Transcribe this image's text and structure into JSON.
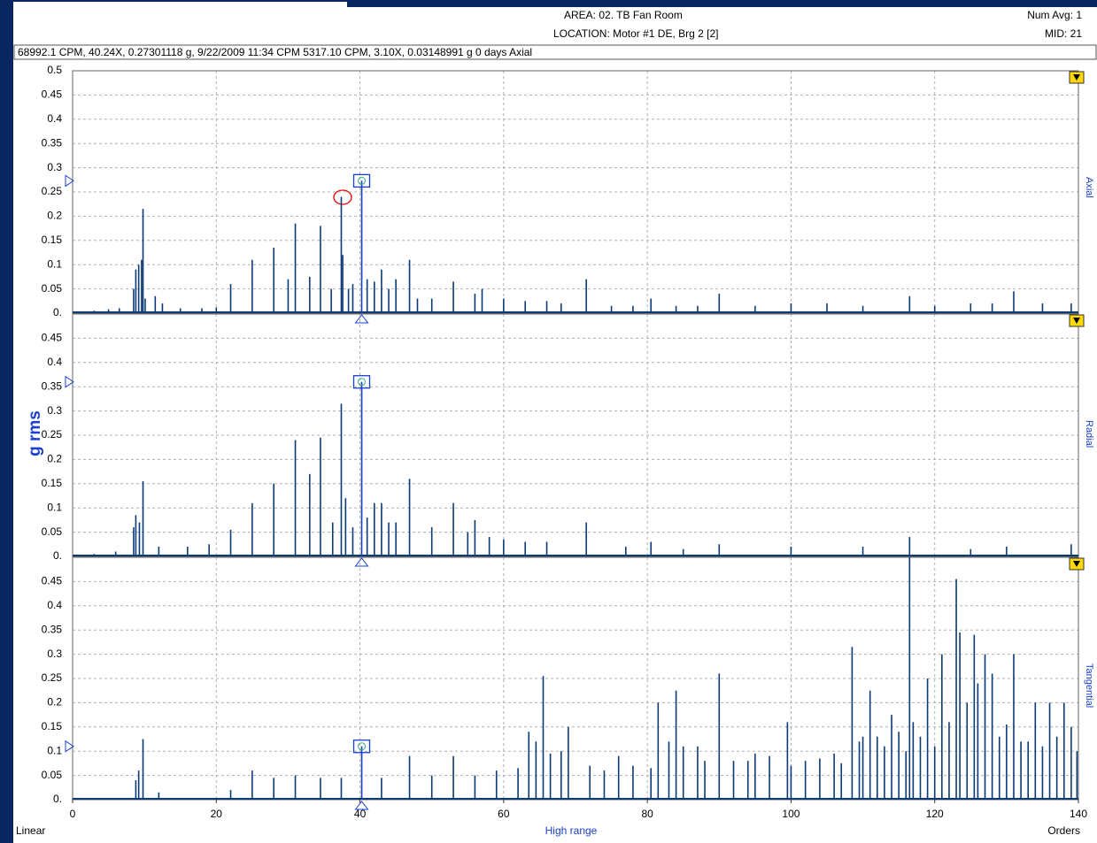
{
  "header": {
    "area": "AREA: 02. TB Fan Room",
    "location": "LOCATION: Motor #1 DE, Brg 2 [2]",
    "num_avg": "Num Avg: 1",
    "mid": "MID: 21",
    "info": "68992.1 CPM, 40.24X, 0.27301118 g, 9/22/2009 11:34 CPM 5317.10 CPM, 3.10X, 0.03148991 g  0 days  Axial"
  },
  "x_axis": {
    "xlim": [
      0,
      140
    ],
    "xticks": [
      0,
      20,
      40,
      60,
      80,
      100,
      120,
      140
    ],
    "label": "High range",
    "scale": "Linear",
    "units": "Orders"
  },
  "y_label": "g rms",
  "chart_data": [
    {
      "type": "stem",
      "side_label": "Axial",
      "color": "#0b3a75",
      "ylim": [
        0,
        0.5
      ],
      "yticks": [
        {
          "value": 0,
          "label": "0."
        },
        0.05,
        0.1,
        0.15,
        0.2,
        0.25,
        0.3,
        0.35,
        0.4,
        0.45,
        0.5
      ],
      "cursor": {
        "x": 40.24,
        "y": 0.273
      },
      "x": [
        3,
        5,
        6.5,
        8.5,
        8.8,
        9.2,
        9.6,
        9.8,
        10.1,
        11.5,
        12.5,
        15,
        18,
        20,
        22,
        25,
        28,
        30,
        31,
        33,
        34.5,
        36,
        37.4,
        37.6,
        38.4,
        39,
        40.24,
        41,
        42,
        43,
        44,
        45,
        46.9,
        48,
        50,
        53,
        56,
        57,
        60,
        63,
        66,
        68,
        71.5,
        75,
        78,
        80.5,
        84,
        87,
        90,
        95,
        100,
        105,
        110,
        116.5,
        120,
        125,
        128,
        131,
        135,
        139
      ],
      "values": [
        0.005,
        0.008,
        0.01,
        0.05,
        0.09,
        0.1,
        0.11,
        0.215,
        0.03,
        0.035,
        0.02,
        0.01,
        0.01,
        0.012,
        0.06,
        0.11,
        0.135,
        0.07,
        0.185,
        0.075,
        0.18,
        0.05,
        0.24,
        0.12,
        0.05,
        0.06,
        0.273,
        0.07,
        0.065,
        0.09,
        0.05,
        0.07,
        0.11,
        0.03,
        0.03,
        0.065,
        0.04,
        0.05,
        0.03,
        0.025,
        0.025,
        0.02,
        0.07,
        0.015,
        0.015,
        0.03,
        0.015,
        0.015,
        0.04,
        0.015,
        0.02,
        0.02,
        0.015,
        0.035,
        0.015,
        0.02,
        0.02,
        0.045,
        0.02,
        0.02
      ]
    },
    {
      "type": "stem",
      "side_label": "Radial",
      "color": "#0b3a75",
      "ylim": [
        0,
        0.5
      ],
      "yticks": [
        {
          "value": 0,
          "label": "0."
        },
        0.05,
        0.1,
        0.15,
        0.2,
        0.25,
        0.3,
        0.35,
        0.4,
        0.45
      ],
      "cursor": {
        "x": 40.24,
        "y": 0.36
      },
      "x": [
        3,
        6,
        8.5,
        8.8,
        9.3,
        9.8,
        12,
        16,
        19,
        22,
        25,
        28,
        31,
        33,
        34.5,
        36.2,
        37.4,
        38,
        39,
        40.24,
        41,
        42,
        43,
        44,
        45,
        46.9,
        50,
        53,
        55,
        56,
        58,
        60,
        63,
        66,
        71.5,
        77,
        80.5,
        85,
        90,
        100,
        110,
        116.5,
        125,
        130,
        139
      ],
      "values": [
        0.005,
        0.01,
        0.06,
        0.085,
        0.07,
        0.155,
        0.02,
        0.02,
        0.025,
        0.055,
        0.11,
        0.15,
        0.24,
        0.17,
        0.245,
        0.07,
        0.315,
        0.12,
        0.06,
        0.36,
        0.08,
        0.11,
        0.11,
        0.07,
        0.07,
        0.16,
        0.06,
        0.11,
        0.05,
        0.075,
        0.04,
        0.035,
        0.03,
        0.03,
        0.07,
        0.02,
        0.03,
        0.015,
        0.025,
        0.02,
        0.02,
        0.04,
        0.015,
        0.02,
        0.025
      ]
    },
    {
      "type": "stem",
      "side_label": "Tangential",
      "color": "#0b3a75",
      "ylim": [
        0,
        0.5
      ],
      "yticks": [
        {
          "value": 0,
          "label": "0."
        },
        0.05,
        0.1,
        0.15,
        0.2,
        0.25,
        0.3,
        0.35,
        0.4,
        0.45
      ],
      "cursor": {
        "x": 40.24,
        "y": 0.11
      },
      "x": [
        8.8,
        9.2,
        9.8,
        12,
        22,
        25,
        28,
        31,
        34.5,
        37.4,
        40.24,
        43,
        46.9,
        50,
        53,
        56,
        59,
        62,
        63.5,
        64.5,
        65.5,
        66.5,
        68,
        69,
        72,
        74,
        76,
        78,
        80.5,
        81.5,
        83,
        84,
        85,
        87,
        88,
        90,
        92,
        94,
        95,
        97,
        99.5,
        100,
        102,
        104,
        106,
        107,
        108.5,
        109.5,
        110,
        111,
        112,
        113,
        114,
        115,
        116,
        116.5,
        117,
        118,
        119,
        120,
        121,
        122,
        123,
        123.5,
        124.5,
        125.5,
        126,
        127,
        128,
        129,
        130,
        131,
        132,
        133,
        134,
        135,
        136,
        137,
        138,
        139,
        139.8
      ],
      "values": [
        0.04,
        0.06,
        0.125,
        0.015,
        0.02,
        0.06,
        0.045,
        0.05,
        0.045,
        0.045,
        0.11,
        0.045,
        0.09,
        0.05,
        0.09,
        0.05,
        0.06,
        0.065,
        0.14,
        0.12,
        0.255,
        0.095,
        0.1,
        0.15,
        0.07,
        0.06,
        0.09,
        0.07,
        0.065,
        0.2,
        0.12,
        0.225,
        0.11,
        0.11,
        0.08,
        0.26,
        0.08,
        0.08,
        0.095,
        0.09,
        0.16,
        0.07,
        0.08,
        0.085,
        0.095,
        0.075,
        0.315,
        0.12,
        0.13,
        0.225,
        0.13,
        0.11,
        0.175,
        0.14,
        0.1,
        0.5,
        0.16,
        0.13,
        0.25,
        0.11,
        0.3,
        0.16,
        0.455,
        0.345,
        0.2,
        0.34,
        0.24,
        0.3,
        0.26,
        0.13,
        0.155,
        0.3,
        0.12,
        0.12,
        0.2,
        0.11,
        0.2,
        0.13,
        0.2,
        0.15,
        0.1
      ]
    }
  ]
}
